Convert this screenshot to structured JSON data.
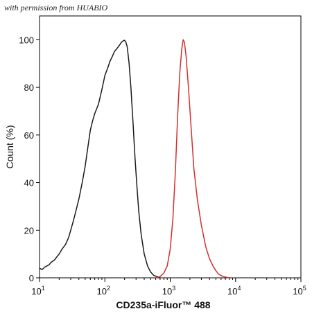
{
  "watermark": "with permission from HUABIO",
  "colors": {
    "control": "#1a1a1a",
    "stained": "#d32f2f",
    "axis": "#000000"
  },
  "chart_data": {
    "type": "line",
    "xlabel": "CD235a-iFluor™ 488",
    "ylabel": "Count  (%)",
    "xscale": "log",
    "xlim": [
      10,
      100000
    ],
    "ylim": [
      0,
      110
    ],
    "grid": false,
    "y_ticks": [
      0,
      20,
      40,
      60,
      80,
      100
    ],
    "x_ticks": [
      {
        "value": 10,
        "base": "10",
        "exp": "1"
      },
      {
        "value": 100,
        "base": "10",
        "exp": "2"
      },
      {
        "value": 1000,
        "base": "10",
        "exp": "3"
      },
      {
        "value": 10000,
        "base": "10",
        "exp": "4"
      },
      {
        "value": 100000,
        "base": "10",
        "exp": "5"
      }
    ],
    "series": [
      {
        "color": "#1a1a1a",
        "points": [
          [
            10,
            4
          ],
          [
            11,
            3.5
          ],
          [
            12,
            4.5
          ],
          [
            13,
            5
          ],
          [
            14,
            5.5
          ],
          [
            15,
            6.5
          ],
          [
            16,
            7
          ],
          [
            17,
            7.5
          ],
          [
            18,
            8.5
          ],
          [
            20,
            10
          ],
          [
            22,
            12
          ],
          [
            25,
            14
          ],
          [
            28,
            17
          ],
          [
            30,
            20
          ],
          [
            33,
            24
          ],
          [
            36,
            28
          ],
          [
            40,
            33
          ],
          [
            45,
            40
          ],
          [
            50,
            47
          ],
          [
            55,
            55
          ],
          [
            60,
            62
          ],
          [
            65,
            66
          ],
          [
            70,
            69
          ],
          [
            80,
            73
          ],
          [
            90,
            79
          ],
          [
            100,
            85
          ],
          [
            110,
            88
          ],
          [
            120,
            91
          ],
          [
            130,
            93
          ],
          [
            140,
            95
          ],
          [
            150,
            96
          ],
          [
            160,
            97
          ],
          [
            170,
            98
          ],
          [
            180,
            99
          ],
          [
            190,
            99.5
          ],
          [
            200,
            99.8
          ],
          [
            210,
            99
          ],
          [
            220,
            97
          ],
          [
            235,
            90
          ],
          [
            250,
            80
          ],
          [
            270,
            65
          ],
          [
            290,
            50
          ],
          [
            310,
            38
          ],
          [
            330,
            28
          ],
          [
            360,
            18
          ],
          [
            400,
            10
          ],
          [
            450,
            5
          ],
          [
            500,
            2.5
          ],
          [
            560,
            1
          ],
          [
            630,
            0.5
          ],
          [
            700,
            0
          ]
        ]
      },
      {
        "color": "#d32f2f",
        "points": [
          [
            600,
            0
          ],
          [
            700,
            0.5
          ],
          [
            800,
            2
          ],
          [
            900,
            5
          ],
          [
            1000,
            12
          ],
          [
            1100,
            25
          ],
          [
            1200,
            45
          ],
          [
            1300,
            68
          ],
          [
            1400,
            86
          ],
          [
            1500,
            96
          ],
          [
            1580,
            100
          ],
          [
            1650,
            99
          ],
          [
            1750,
            93
          ],
          [
            1900,
            80
          ],
          [
            2100,
            62
          ],
          [
            2300,
            46
          ],
          [
            2600,
            33
          ],
          [
            3000,
            22
          ],
          [
            3500,
            13
          ],
          [
            4000,
            8
          ],
          [
            4500,
            5
          ],
          [
            5000,
            3
          ],
          [
            5500,
            1.5
          ],
          [
            6500,
            0.5
          ],
          [
            8000,
            0
          ]
        ]
      }
    ]
  }
}
